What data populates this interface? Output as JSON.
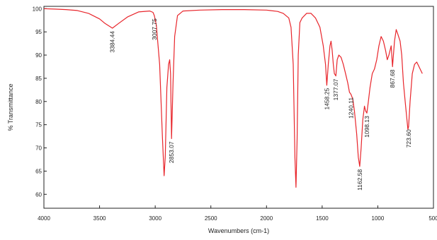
{
  "chart_data": {
    "type": "line",
    "title": "",
    "xlabel": "Wavenumbers (cm-1)",
    "ylabel": "% Transmittance",
    "xlim": [
      4000,
      500
    ],
    "ylim": [
      57,
      100.5
    ],
    "x_reversed": true,
    "grid": false,
    "line_color": "#e8252b",
    "x_ticks": [
      {
        "value": 4000,
        "label": "4000"
      },
      {
        "value": 3500,
        "label": "3500"
      },
      {
        "value": 3000,
        "label": "3000"
      },
      {
        "value": 2500,
        "label": "2500"
      },
      {
        "value": 2000,
        "label": "2000"
      },
      {
        "value": 1500,
        "label": "1500"
      },
      {
        "value": 1000,
        "label": "1000"
      },
      {
        "value": 500,
        "label": "500"
      }
    ],
    "y_ticks": [
      {
        "value": 100,
        "label": "100"
      },
      {
        "value": 95,
        "label": "95"
      },
      {
        "value": 90,
        "label": "90"
      },
      {
        "value": 85,
        "label": "85"
      },
      {
        "value": 80,
        "label": "80"
      },
      {
        "value": 75,
        "label": "75"
      },
      {
        "value": 70,
        "label": "70"
      },
      {
        "value": 65,
        "label": "65"
      },
      {
        "value": 60,
        "label": "60"
      }
    ],
    "series": [
      {
        "x": [
          4000,
          3900,
          3800,
          3700,
          3600,
          3500,
          3450,
          3384.44,
          3330,
          3250,
          3150,
          3050,
          3020,
          3007.75,
          2990,
          2960,
          2935,
          2920,
          2910,
          2895,
          2880,
          2870,
          2862,
          2853.07,
          2840,
          2825,
          2800,
          2750,
          2600,
          2400,
          2200,
          2000,
          1900,
          1850,
          1800,
          1780,
          1760,
          1745,
          1735,
          1725,
          1715,
          1700,
          1680,
          1640,
          1600,
          1560,
          1520,
          1490,
          1470,
          1458.25,
          1445,
          1430,
          1420,
          1410,
          1400,
          1390,
          1377.07,
          1365,
          1350,
          1330,
          1310,
          1290,
          1270,
          1255,
          1240.11,
          1225,
          1210,
          1190,
          1175,
          1162.58,
          1150,
          1135,
          1120,
          1110,
          1098.13,
          1085,
          1070,
          1050,
          1030,
          1010,
          990,
          970,
          950,
          930,
          915,
          900,
          880,
          867.68,
          850,
          835,
          820,
          800,
          785,
          770,
          750,
          730,
          723.6,
          710,
          690,
          670,
          650,
          630,
          610,
          600
        ],
        "y": [
          100,
          99.9,
          99.8,
          99.6,
          99,
          97.8,
          96.8,
          95.8,
          96.8,
          98.2,
          99.3,
          99.5,
          99.2,
          98.5,
          96.5,
          88,
          72,
          64,
          68,
          83,
          88,
          89,
          86,
          72,
          84,
          94,
          98.5,
          99.5,
          99.7,
          99.8,
          99.8,
          99.7,
          99.4,
          99,
          98,
          96,
          88,
          68,
          61.5,
          72,
          90,
          97,
          98,
          99,
          99,
          98,
          96,
          92,
          88,
          83.5,
          88,
          92,
          93,
          91,
          88,
          86,
          85.5,
          89,
          90,
          89.5,
          88,
          86,
          84,
          82,
          81.5,
          80.5,
          78,
          73,
          68,
          66,
          70,
          76,
          79,
          78,
          77.5,
          80,
          83,
          86,
          87,
          89,
          92,
          94,
          93,
          91,
          89,
          90,
          92,
          87.5,
          93,
          95.5,
          94.5,
          93,
          90,
          84,
          79,
          74,
          74.6,
          80,
          86,
          88,
          88.5,
          87.5,
          86.5,
          86
        ]
      }
    ],
    "annotations": [
      {
        "text": "3384.44",
        "x": 3384.44,
        "y": 95.8
      },
      {
        "text": "3007.75",
        "x": 3007.75,
        "y": 98.5
      },
      {
        "text": "2853.07",
        "x": 2853.07,
        "y": 72
      },
      {
        "text": "1458.25",
        "x": 1458.25,
        "y": 83.5
      },
      {
        "text": "1377.07",
        "x": 1377.07,
        "y": 85.5
      },
      {
        "text": "1240.11",
        "x": 1240.11,
        "y": 81.5
      },
      {
        "text": "1162.58",
        "x": 1162.58,
        "y": 66
      },
      {
        "text": "1098.13",
        "x": 1098.13,
        "y": 77.5
      },
      {
        "text": "867.68",
        "x": 867.68,
        "y": 87.5
      },
      {
        "text": "723.60",
        "x": 723.6,
        "y": 74.6
      }
    ]
  }
}
